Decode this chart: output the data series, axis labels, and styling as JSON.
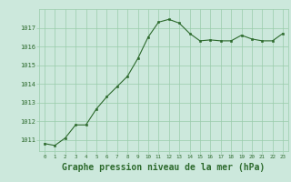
{
  "x": [
    0,
    1,
    2,
    3,
    4,
    5,
    6,
    7,
    8,
    9,
    10,
    11,
    12,
    13,
    14,
    15,
    16,
    17,
    18,
    19,
    20,
    21,
    22,
    23
  ],
  "y": [
    1010.8,
    1010.7,
    1011.1,
    1011.8,
    1011.8,
    1012.65,
    1013.3,
    1013.85,
    1014.4,
    1015.35,
    1016.5,
    1017.3,
    1017.45,
    1017.25,
    1016.7,
    1016.3,
    1016.35,
    1016.3,
    1016.3,
    1016.6,
    1016.4,
    1016.3,
    1016.3,
    1016.7
  ],
  "line_color": "#2d6a2d",
  "marker_color": "#2d6a2d",
  "bg_color": "#cce8dc",
  "grid_color": "#99ccaa",
  "tick_color": "#2d6a2d",
  "title": "Graphe pression niveau de la mer (hPa)",
  "title_color": "#2d6a2d",
  "title_fontsize": 7.0,
  "ylim_min": 1010.4,
  "ylim_max": 1018.0,
  "yticks": [
    1011,
    1012,
    1013,
    1014,
    1015,
    1016,
    1017
  ],
  "xticks": [
    0,
    1,
    2,
    3,
    4,
    5,
    6,
    7,
    8,
    9,
    10,
    11,
    12,
    13,
    14,
    15,
    16,
    17,
    18,
    19,
    20,
    21,
    22,
    23
  ],
  "xlim_min": -0.5,
  "xlim_max": 23.5
}
